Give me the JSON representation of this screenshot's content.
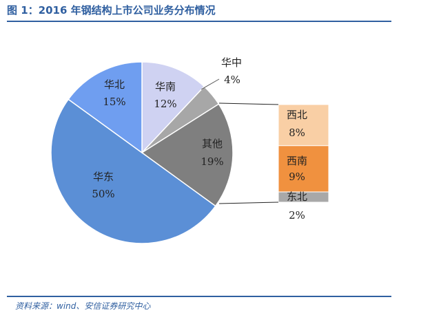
{
  "title": "图 1：2016 年钢结构上市公司业务分布情况",
  "source": "资料来源：wind、安信证券研究中心",
  "chart_data": {
    "type": "pie",
    "title": "图 1：2016 年钢结构上市公司业务分布情况",
    "slices": [
      {
        "name": "华东",
        "value": 50,
        "label": "50%",
        "color": "#5b8fd6"
      },
      {
        "name": "华北",
        "value": 15,
        "label": "15%",
        "color": "#6f9ef0"
      },
      {
        "name": "华南",
        "value": 12,
        "label": "12%",
        "color": "#cfd2f2"
      },
      {
        "name": "华中",
        "value": 4,
        "label": "4%",
        "color": "#a7a7a7"
      },
      {
        "name": "其他",
        "value": 19,
        "label": "19%",
        "color": "#7f7f7f"
      }
    ],
    "breakdown": {
      "of": "其他",
      "type": "stacked-bar",
      "items": [
        {
          "name": "西北",
          "value": 8,
          "label": "8%",
          "color": "#f9cfa5"
        },
        {
          "name": "西南",
          "value": 9,
          "label": "9%",
          "color": "#f0913f"
        },
        {
          "name": "东北",
          "value": 2,
          "label": "2%",
          "color": "#a8a8a8"
        }
      ]
    }
  }
}
